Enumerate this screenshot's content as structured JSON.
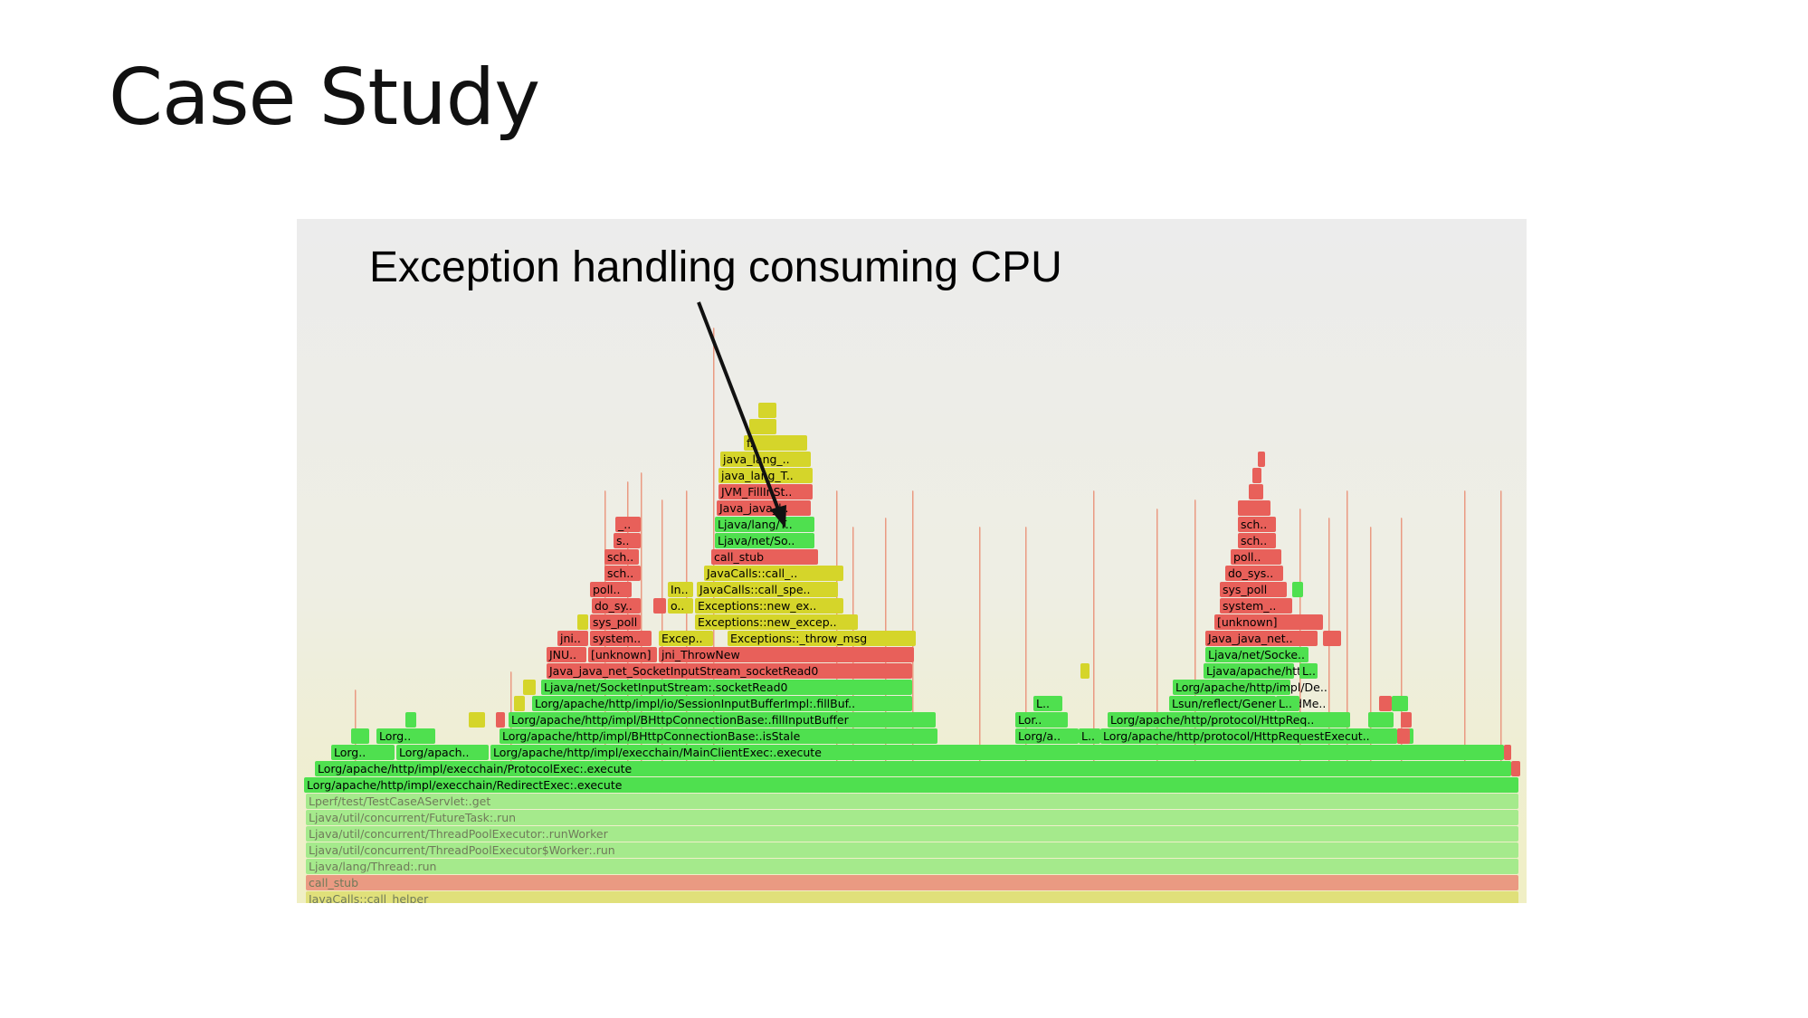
{
  "slide": {
    "title": "Case Study"
  },
  "annotation": {
    "text": "Exception handling consuming CPU"
  },
  "colors": {
    "red": "#e8605a",
    "green": "#4fe04f",
    "yellow": "#d5d52a",
    "pale_green": "#a5ea8c",
    "pale_red": "#ea9a82",
    "pale_yellow": "#e0e07a"
  },
  "flame_labels": [
    "JavaCalls::call_helper",
    "call_stub",
    "Ljava/lang/Thread:.run",
    "Ljava/util/concurrent/ThreadPoolExecutor$Worker:.run",
    "Ljava/util/concurrent/ThreadPoolExecutor:.runWorker",
    "Ljava/util/concurrent/FutureTask:.run",
    "Lperf/test/TestCaseAServlet:.get",
    "Lorg/apache/http/impl/execchain/RedirectExec:.execute",
    "Lorg/apache/http/impl/execchain/ProtocolExec:.execute",
    "Lorg..",
    "Lorg/apach..",
    "Lorg/apache/http/impl/execchain/MainClientExec:.execute",
    "Lorg..",
    "Lorg/apache/http/impl/BHttpConnectionBase:.isStale",
    "Lorg/a..",
    "L..",
    "Lorg/apache/http/protocol/HttpRequestExecut..",
    "Lorg/apache/http/impl/BHttpConnectionBase:.fillInputBuffer",
    "Lor..",
    "Lorg/apache/http/protocol/HttpReq..",
    "Lorg/apache/http/impl/io/SessionInputBufferImpl:.fillBuf..",
    "L..",
    "Lsun/reflect/GeneratedMe..",
    "L..",
    "Ljava/net/SocketInputStream:.socketRead0",
    "Lorg/apache/http/impl/De..",
    "Java_java_net_SocketInputStream_socketRead0",
    "Ljava/apache/http..",
    "L..",
    "JNU..",
    "[unknown]",
    "jni_ThrowNew",
    "Ljava/net/Socke..",
    "jni..",
    "system..",
    "Excep..",
    "Exceptions::_throw_msg",
    "Java_java_net..",
    "sys_poll",
    "Exceptions::new_excep..",
    "[unknown]",
    "do_sy..",
    "o..",
    "Exceptions::new_ex..",
    "system_..",
    "poll..",
    "In..",
    "JavaCalls::call_spe..",
    "sys_poll",
    "sch..",
    "JavaCalls::call_..",
    "do_sys..",
    "sch..",
    "call_stub",
    "poll..",
    "s..",
    "Ljava/net/So..",
    "sch..",
    "_..",
    "Ljava/lang/T..",
    "sch..",
    "Java_java_l..",
    "JVM_FillInSt..",
    "java_lang_T..",
    "java_lang_..",
    "f.."
  ]
}
